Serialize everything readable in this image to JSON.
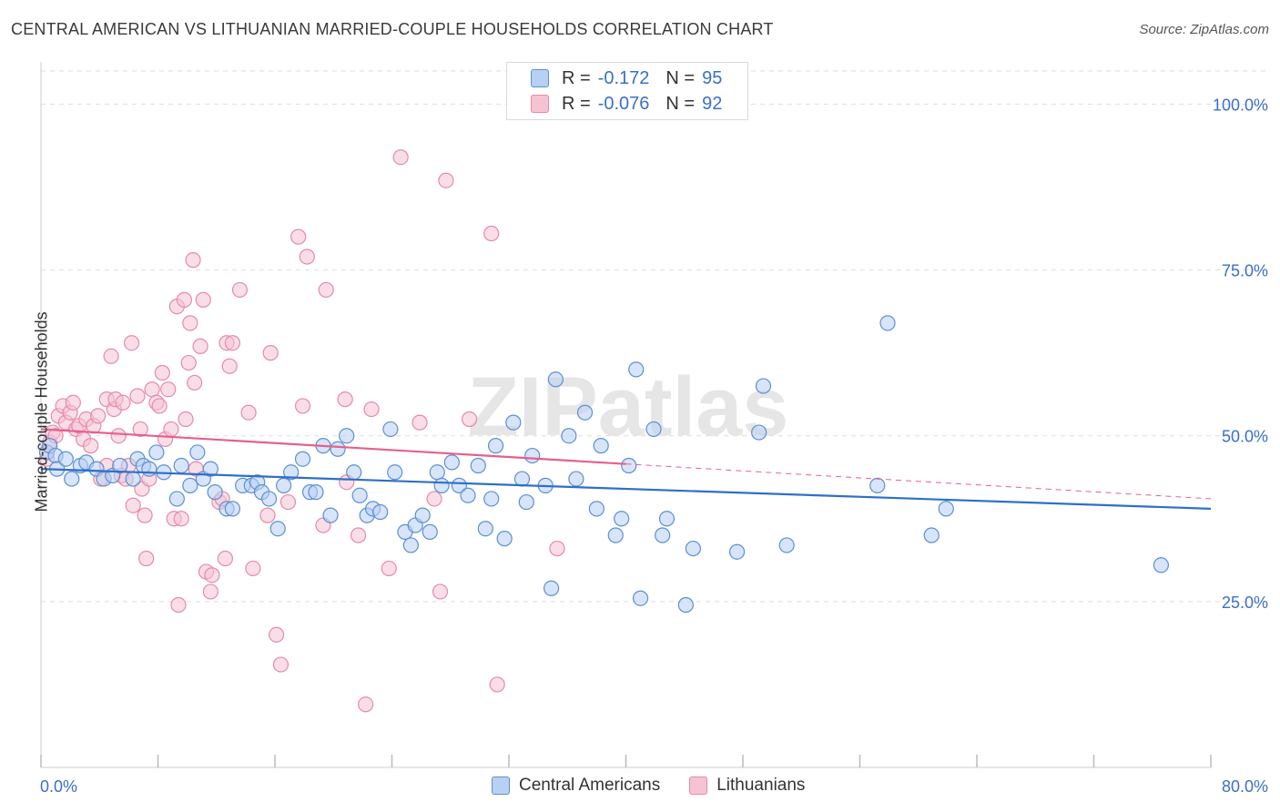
{
  "title": "CENTRAL AMERICAN VS LITHUANIAN MARRIED-COUPLE HOUSEHOLDS CORRELATION CHART",
  "source": "Source: ZipAtlas.com",
  "watermark": "ZIPatlas",
  "legend_top": [
    {
      "r_label": "R =",
      "r_value": "-0.172",
      "n_label": "N =",
      "n_value": "95"
    },
    {
      "r_label": "R =",
      "r_value": "-0.076",
      "n_label": "N =",
      "n_value": "92"
    }
  ],
  "legend_bottom": [
    "Central Americans",
    "Lithuanians"
  ],
  "colors": {
    "blue_fill": "#b8d0f2",
    "blue_stroke": "#5b8fd6",
    "blue_line": "#2f6fc9",
    "pink_fill": "#f6c3d3",
    "pink_stroke": "#e68aa8",
    "pink_line": "#e5608c",
    "tick_text": "#3b6fc9",
    "grid": "#dddddd"
  },
  "chart_data": {
    "type": "scatter",
    "title": "CENTRAL AMERICAN VS LITHUANIAN MARRIED-COUPLE HOUSEHOLDS CORRELATION CHART",
    "xlabel": "",
    "ylabel": "Married-couple Households",
    "xlim": [
      0,
      80
    ],
    "ylim": [
      0,
      105
    ],
    "x_tick_labels": [
      "0.0%",
      "80.0%"
    ],
    "y_ticks": [
      25,
      50,
      75,
      100
    ],
    "y_tick_labels": [
      "25.0%",
      "50.0%",
      "75.0%",
      "100.0%"
    ],
    "grid": true,
    "series": [
      {
        "name": "Central Americans",
        "r": -0.172,
        "n": 95,
        "trend": {
          "x": [
            0,
            80
          ],
          "y": [
            45.0,
            39.0
          ],
          "solid_until": 80
        },
        "points": [
          [
            0.4,
            47.5
          ],
          [
            0.6,
            48.5
          ],
          [
            1.0,
            47.0
          ],
          [
            1.1,
            45.0
          ],
          [
            1.7,
            46.5
          ],
          [
            2.1,
            43.5
          ],
          [
            2.7,
            45.5
          ],
          [
            3.1,
            46.0
          ],
          [
            3.8,
            45.0
          ],
          [
            4.3,
            43.5
          ],
          [
            4.9,
            44.0
          ],
          [
            5.4,
            45.5
          ],
          [
            6.3,
            43.5
          ],
          [
            6.6,
            46.5
          ],
          [
            7.0,
            45.5
          ],
          [
            7.4,
            45.0
          ],
          [
            7.9,
            47.5
          ],
          [
            8.4,
            44.5
          ],
          [
            9.3,
            40.5
          ],
          [
            9.6,
            45.5
          ],
          [
            10.2,
            42.5
          ],
          [
            10.7,
            47.5
          ],
          [
            11.1,
            43.5
          ],
          [
            11.6,
            45.0
          ],
          [
            11.9,
            41.5
          ],
          [
            12.7,
            39.0
          ],
          [
            13.1,
            39.0
          ],
          [
            13.8,
            42.5
          ],
          [
            14.4,
            42.5
          ],
          [
            14.8,
            43.0
          ],
          [
            15.1,
            41.5
          ],
          [
            15.6,
            40.5
          ],
          [
            16.2,
            36.0
          ],
          [
            16.6,
            42.5
          ],
          [
            17.1,
            44.5
          ],
          [
            17.9,
            46.5
          ],
          [
            18.4,
            41.5
          ],
          [
            18.8,
            41.5
          ],
          [
            19.3,
            48.5
          ],
          [
            19.8,
            38.0
          ],
          [
            20.3,
            48.0
          ],
          [
            20.9,
            50.0
          ],
          [
            21.4,
            44.5
          ],
          [
            21.8,
            41.0
          ],
          [
            22.3,
            38.0
          ],
          [
            22.7,
            39.0
          ],
          [
            23.2,
            38.5
          ],
          [
            23.9,
            51.0
          ],
          [
            24.2,
            44.5
          ],
          [
            24.9,
            35.5
          ],
          [
            25.3,
            33.5
          ],
          [
            25.6,
            36.5
          ],
          [
            26.1,
            38.0
          ],
          [
            26.6,
            35.5
          ],
          [
            27.1,
            44.5
          ],
          [
            27.4,
            42.5
          ],
          [
            28.1,
            46.0
          ],
          [
            28.6,
            42.5
          ],
          [
            29.2,
            41.0
          ],
          [
            29.9,
            45.5
          ],
          [
            30.4,
            36.0
          ],
          [
            30.8,
            40.5
          ],
          [
            31.1,
            48.5
          ],
          [
            31.7,
            34.5
          ],
          [
            32.3,
            52.0
          ],
          [
            32.9,
            43.5
          ],
          [
            33.2,
            40.0
          ],
          [
            33.6,
            47.0
          ],
          [
            34.5,
            42.5
          ],
          [
            34.9,
            27.0
          ],
          [
            35.2,
            58.5
          ],
          [
            36.1,
            50.0
          ],
          [
            36.6,
            43.5
          ],
          [
            37.2,
            53.5
          ],
          [
            38.0,
            39.0
          ],
          [
            38.3,
            48.5
          ],
          [
            39.3,
            35.0
          ],
          [
            39.7,
            37.5
          ],
          [
            40.2,
            45.5
          ],
          [
            40.7,
            60.0
          ],
          [
            41.0,
            25.5
          ],
          [
            41.9,
            51.0
          ],
          [
            42.5,
            35.0
          ],
          [
            42.8,
            37.5
          ],
          [
            44.1,
            24.5
          ],
          [
            44.6,
            33.0
          ],
          [
            47.6,
            32.5
          ],
          [
            49.1,
            50.5
          ],
          [
            49.4,
            57.5
          ],
          [
            51.0,
            33.5
          ],
          [
            57.2,
            42.5
          ],
          [
            57.9,
            67.0
          ],
          [
            60.9,
            35.0
          ],
          [
            61.9,
            39.0
          ],
          [
            76.6,
            30.5
          ]
        ]
      },
      {
        "name": "Lithuanians",
        "r": -0.076,
        "n": 92,
        "trend": {
          "x": [
            0,
            80
          ],
          "y": [
            51.0,
            40.5
          ],
          "solid_until": 40
        },
        "points": [
          [
            0.4,
            46.5
          ],
          [
            0.6,
            49.0
          ],
          [
            0.8,
            50.5
          ],
          [
            1.0,
            50.0
          ],
          [
            1.2,
            53.0
          ],
          [
            1.5,
            54.5
          ],
          [
            1.7,
            52.0
          ],
          [
            2.0,
            53.5
          ],
          [
            2.2,
            55.0
          ],
          [
            2.4,
            51.0
          ],
          [
            2.6,
            51.5
          ],
          [
            2.9,
            49.5
          ],
          [
            3.1,
            52.5
          ],
          [
            3.4,
            48.5
          ],
          [
            3.6,
            51.5
          ],
          [
            3.9,
            53.0
          ],
          [
            4.1,
            43.5
          ],
          [
            4.5,
            45.5
          ],
          [
            4.5,
            55.5
          ],
          [
            4.8,
            62.0
          ],
          [
            5.0,
            54.0
          ],
          [
            5.1,
            55.5
          ],
          [
            5.3,
            50.0
          ],
          [
            5.5,
            44.0
          ],
          [
            5.6,
            55.0
          ],
          [
            5.8,
            43.5
          ],
          [
            6.0,
            45.5
          ],
          [
            6.2,
            64.0
          ],
          [
            6.3,
            39.5
          ],
          [
            6.6,
            56.0
          ],
          [
            6.8,
            51.0
          ],
          [
            6.9,
            42.0
          ],
          [
            7.1,
            38.0
          ],
          [
            7.2,
            31.5
          ],
          [
            7.4,
            43.5
          ],
          [
            7.6,
            57.0
          ],
          [
            7.9,
            55.0
          ],
          [
            8.1,
            54.5
          ],
          [
            8.3,
            59.5
          ],
          [
            8.5,
            49.5
          ],
          [
            8.7,
            57.0
          ],
          [
            8.9,
            51.0
          ],
          [
            9.1,
            37.5
          ],
          [
            9.3,
            69.5
          ],
          [
            9.4,
            24.5
          ],
          [
            9.6,
            37.5
          ],
          [
            9.8,
            70.5
          ],
          [
            9.9,
            52.5
          ],
          [
            10.1,
            61.0
          ],
          [
            10.2,
            67.0
          ],
          [
            10.4,
            76.5
          ],
          [
            10.5,
            58.0
          ],
          [
            10.6,
            45.0
          ],
          [
            10.9,
            63.5
          ],
          [
            11.1,
            70.5
          ],
          [
            11.3,
            29.5
          ],
          [
            11.6,
            26.5
          ],
          [
            11.7,
            29.0
          ],
          [
            12.2,
            40.0
          ],
          [
            12.4,
            40.5
          ],
          [
            12.6,
            31.5
          ],
          [
            12.7,
            64.0
          ],
          [
            12.9,
            60.5
          ],
          [
            13.1,
            64.0
          ],
          [
            13.6,
            72.0
          ],
          [
            14.2,
            53.5
          ],
          [
            14.5,
            30.0
          ],
          [
            15.5,
            38.0
          ],
          [
            15.7,
            62.5
          ],
          [
            16.1,
            20.0
          ],
          [
            16.4,
            15.5
          ],
          [
            16.9,
            40.0
          ],
          [
            17.6,
            80.0
          ],
          [
            17.9,
            54.5
          ],
          [
            18.2,
            77.0
          ],
          [
            19.3,
            36.5
          ],
          [
            19.5,
            72.0
          ],
          [
            20.8,
            55.5
          ],
          [
            20.9,
            43.0
          ],
          [
            21.7,
            35.0
          ],
          [
            22.2,
            9.5
          ],
          [
            22.6,
            54.0
          ],
          [
            23.8,
            30.0
          ],
          [
            24.6,
            92.0
          ],
          [
            25.9,
            52.0
          ],
          [
            26.9,
            40.5
          ],
          [
            27.3,
            26.5
          ],
          [
            27.7,
            88.5
          ],
          [
            29.3,
            52.5
          ],
          [
            30.8,
            80.5
          ],
          [
            31.2,
            12.5
          ],
          [
            35.3,
            33.0
          ]
        ]
      }
    ]
  }
}
